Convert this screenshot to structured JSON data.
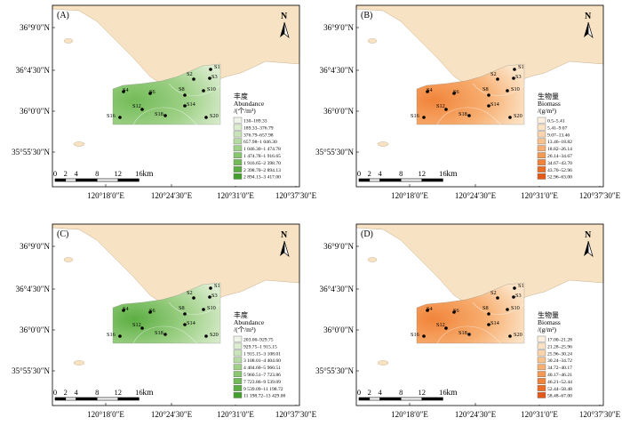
{
  "panels": [
    {
      "id": "A",
      "label": "(A)",
      "variable": "abundance",
      "legend_title_lines": [
        "丰度",
        "Abundance",
        "/(个/m³)"
      ],
      "legend_classes": [
        "130–189.33",
        "189.33–376.79",
        "376.79–657.98",
        "657.98–1 046.30",
        "1 046.30–1 474.78",
        "1 474.78–1 916.65",
        "1 916.65–2 398.70",
        "2 398.70–2 894.13",
        "2 894.13–3 417.00"
      ],
      "legend_colors": [
        "#eef5e8",
        "#dcedd0",
        "#c9e4b9",
        "#b4dba1",
        "#9fd188",
        "#89c670",
        "#73bb58",
        "#5cae42",
        "#44a02d"
      ]
    },
    {
      "id": "B",
      "label": "(B)",
      "variable": "biomass",
      "legend_title_lines": [
        "生物量",
        "Biomass",
        "/(g/m³)"
      ],
      "legend_classes": [
        "0.5–5.41",
        "5.41–9.07",
        "9.07–13.46",
        "13.46–18.82",
        "18.82–26.14",
        "26.14–34.67",
        "34.67–43.70",
        "43.70–52.96",
        "52.96–63.00"
      ],
      "legend_colors": [
        "#fdf0e0",
        "#fce3c6",
        "#fbd4ab",
        "#f9c28d",
        "#f7ae70",
        "#f49954",
        "#f1843b",
        "#ec6e26",
        "#e65817"
      ]
    },
    {
      "id": "C",
      "label": "(C)",
      "variable": "abundance",
      "legend_title_lines": [
        "丰度",
        "Abundance",
        "/(个/m³)"
      ],
      "legend_classes": [
        "203.00–929.75",
        "929.75–1 915.15",
        "1 915.15–3 108.01",
        "3 108.01–4 404.60",
        "4 404.60–5 960.51",
        "5 960.51–7 723.86",
        "7 723.86–9 539.09",
        "9 539.09–11 198.72",
        "11 198.72–13 429.00"
      ],
      "legend_colors": [
        "#eef5e8",
        "#dcedd0",
        "#c9e4b9",
        "#b4dba1",
        "#9fd188",
        "#89c670",
        "#73bb58",
        "#5cae42",
        "#44a02d"
      ]
    },
    {
      "id": "D",
      "label": "(D)",
      "variable": "biomass",
      "legend_title_lines": [
        "生物量",
        "Biomass",
        "/(g/m³)"
      ],
      "legend_classes": [
        "17.00–21.28",
        "21.28–25.96",
        "25.96–30.24",
        "30.24–34.72",
        "34.72–40.17",
        "40.17–46.21",
        "46.21–52.44",
        "52.44–58.48",
        "58.48–67.00"
      ],
      "legend_colors": [
        "#fdf0e0",
        "#fce3c6",
        "#fbd4ab",
        "#f9c28d",
        "#f7ae70",
        "#f49954",
        "#f1843b",
        "#ec6e26",
        "#e65817"
      ]
    }
  ],
  "stations": [
    "S1",
    "S2",
    "S3",
    "S4",
    "S6",
    "S8",
    "S10",
    "S12",
    "S14",
    "S16",
    "S18",
    "S20"
  ],
  "lat_labels": [
    "36°9′0″N",
    "36°4′30″N",
    "36°0′0″N",
    "35°55′30″N"
  ],
  "lon_labels": [
    "120°18′0″E",
    "120°24′30″E",
    "120°31′0″E",
    "120°37′30″E"
  ],
  "scale_numbers": [
    "0",
    "2",
    "4",
    "8",
    "12",
    "16"
  ],
  "scale_unit": "km",
  "north_label": "N",
  "colors": {
    "land": "#f7e3c3",
    "sea": "#ffffff",
    "frame": "#000000",
    "station": "#000000"
  }
}
